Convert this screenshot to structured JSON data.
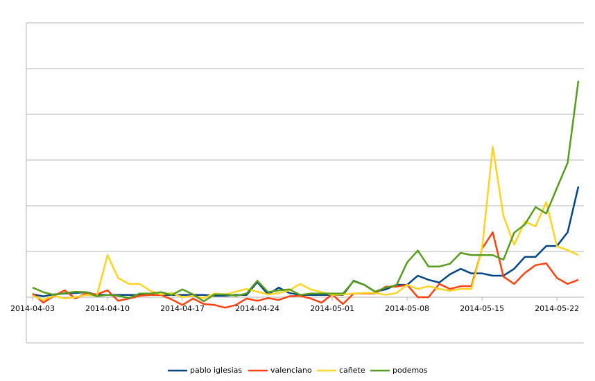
{
  "chart_data": {
    "type": "line",
    "categories": [
      "2014-04-03",
      null,
      null,
      null,
      null,
      null,
      null,
      "2014-04-10",
      null,
      null,
      null,
      null,
      null,
      null,
      "2014-04-17",
      null,
      null,
      null,
      null,
      null,
      null,
      "2014-04-24",
      null,
      null,
      null,
      null,
      null,
      null,
      "2014-05-01",
      null,
      null,
      null,
      null,
      null,
      null,
      "2014-05-08",
      null,
      null,
      null,
      null,
      null,
      null,
      "2014-05-15",
      null,
      null,
      null,
      null,
      null,
      null,
      "2014-05-22",
      null,
      null
    ],
    "series": [
      {
        "name": "pablo iglesias",
        "color": "#004586",
        "values": [
          0.06,
          0.02,
          0.06,
          0.08,
          0.09,
          0.11,
          0.05,
          0.05,
          0.05,
          0.05,
          0.05,
          0.05,
          0.05,
          0.05,
          0.05,
          0.05,
          0.05,
          0.03,
          0.03,
          0.05,
          0.05,
          0.33,
          0.06,
          0.21,
          0.09,
          0.05,
          0.05,
          0.05,
          0.05,
          0.05,
          0.36,
          0.27,
          0.12,
          0.17,
          0.27,
          0.27,
          0.47,
          0.38,
          0.32,
          0.5,
          0.62,
          0.52,
          0.52,
          0.47,
          0.47,
          0.62,
          0.88,
          0.88,
          1.12,
          1.12,
          1.42,
          2.42
        ]
      },
      {
        "name": "valenciano",
        "color": "#ff420e",
        "values": [
          0.08,
          -0.12,
          0.03,
          0.15,
          -0.03,
          0.09,
          0.06,
          0.15,
          -0.08,
          -0.03,
          0.03,
          0.05,
          0.05,
          -0.05,
          -0.17,
          -0.03,
          -0.15,
          -0.17,
          -0.23,
          -0.17,
          -0.03,
          -0.08,
          -0.02,
          -0.06,
          0.02,
          0.03,
          -0.03,
          -0.12,
          0.06,
          -0.15,
          0.08,
          0.08,
          0.08,
          0.23,
          0.23,
          0.27,
          0,
          0,
          0.29,
          0.18,
          0.24,
          0.24,
          1.06,
          1.42,
          0.45,
          0.29,
          0.53,
          0.7,
          0.74,
          0.42,
          0.29,
          0.38
        ]
      },
      {
        "name": "cañete",
        "color": "#ffd320",
        "values": [
          0.03,
          -0.06,
          0.03,
          -0.03,
          0,
          0.05,
          0.03,
          0.92,
          0.42,
          0.29,
          0.29,
          0.14,
          0.06,
          0.09,
          0,
          0.03,
          -0.02,
          0.08,
          0.06,
          0.12,
          0.18,
          0.12,
          0.06,
          0.09,
          0.15,
          0.29,
          0.17,
          0.11,
          0.05,
          0.06,
          0.08,
          0.09,
          0.09,
          0.05,
          0.09,
          0.27,
          0.18,
          0.24,
          0.18,
          0.14,
          0.18,
          0.18,
          1.06,
          3.29,
          1.77,
          1.15,
          1.65,
          1.55,
          2.08,
          1.11,
          1.03,
          0.92
        ]
      },
      {
        "name": "podemos",
        "color": "#579d1c",
        "values": [
          0.21,
          0.11,
          0.05,
          0.09,
          0.12,
          0.11,
          0.02,
          0.05,
          0.03,
          -0.02,
          0.08,
          0.08,
          0.11,
          0.05,
          0.17,
          0.06,
          -0.09,
          0.06,
          0.06,
          0.03,
          0.08,
          0.36,
          0.11,
          0.15,
          0.17,
          0.05,
          0.08,
          0.08,
          0.08,
          0.08,
          0.35,
          0.27,
          0.12,
          0.21,
          0.26,
          0.76,
          1.02,
          0.67,
          0.67,
          0.73,
          0.97,
          0.92,
          0.92,
          0.92,
          0.82,
          1.41,
          1.59,
          1.97,
          1.83,
          2.39,
          2.94,
          4.73
        ]
      }
    ],
    "ylim": [
      -1,
      6
    ],
    "yticks": [
      -1,
      0,
      1,
      2,
      3,
      4,
      5,
      6
    ],
    "grid": true,
    "legend": "bottom"
  }
}
